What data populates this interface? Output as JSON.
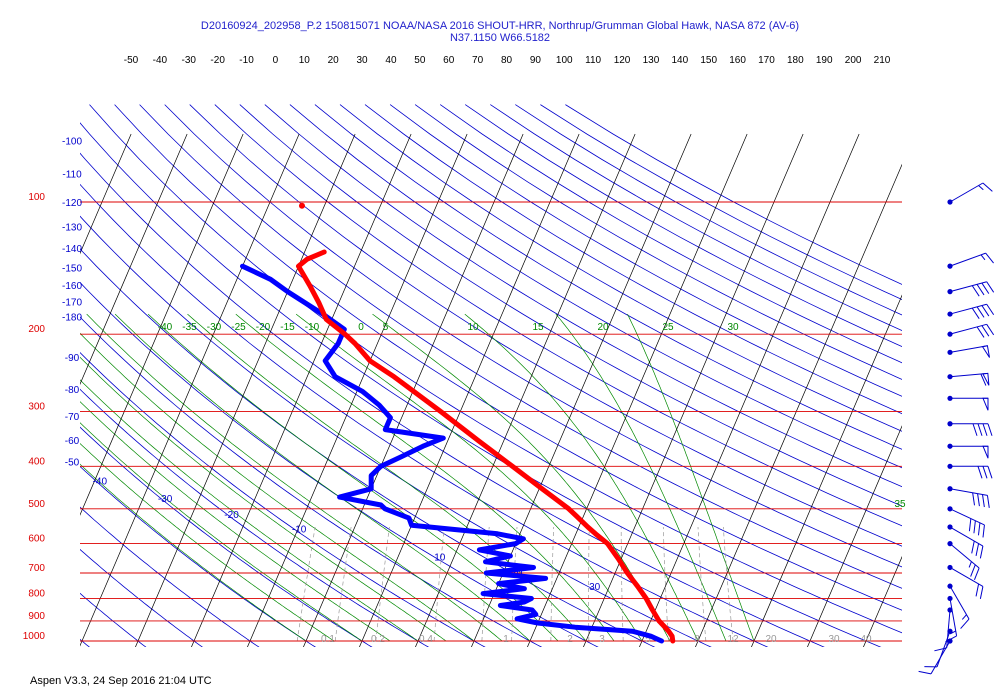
{
  "header": {
    "title": "D20160924_202958_P.2 150815071 NOAA/NASA 2016 SHOUT-HRR, Northrup/Grumman Global Hawk, NASA 872 (AV-6)",
    "location": "N37.1150 W66.5182"
  },
  "footer": {
    "text": "Aspen V3.3, 24 Sep 2016  21:04 UTC"
  },
  "chart_data": {
    "type": "skew-t",
    "colors": {
      "isobar": "#dd0000",
      "isotherm": "#000000",
      "dry_adiabat": "#0000cc",
      "moist_adiabat": "#008800",
      "mixing_ratio": "#999999",
      "temperature": "#ff0000",
      "dewpoint": "#0000ff",
      "barb": "#0000cc"
    },
    "pressure_levels": [
      100,
      200,
      300,
      400,
      500,
      600,
      700,
      800,
      900,
      1000
    ],
    "temperature_ticks": [
      -50,
      -40,
      -30,
      -20,
      -10,
      0,
      10,
      20,
      30,
      40,
      50,
      60,
      70,
      80,
      90,
      100,
      110,
      120,
      130,
      140,
      150,
      160,
      170,
      180,
      190,
      200,
      210
    ],
    "dry_adiabat_labels": [
      -180,
      -170,
      -160,
      -150,
      -140,
      -130,
      -120,
      -110,
      -100,
      -90,
      -80,
      -70,
      -60,
      -50,
      -40,
      -30,
      -20,
      -10,
      10,
      20,
      30
    ],
    "moist_adiabat_labels": [
      -40,
      -35,
      -30,
      -25,
      -20,
      -15,
      -10,
      -5,
      0,
      5,
      10,
      15,
      20,
      25,
      30,
      35
    ],
    "mixing_ratio_labels": [
      "0.1",
      "0.2",
      "0.4",
      "1",
      "2",
      "3",
      "5",
      "8",
      "12",
      "20",
      "30",
      "40"
    ],
    "temperature_profile": [
      [
        1000,
        25.5
      ],
      [
        975,
        25
      ],
      [
        950,
        24
      ],
      [
        925,
        22.8
      ],
      [
        900,
        21.5
      ],
      [
        850,
        19.5
      ],
      [
        800,
        17.5
      ],
      [
        750,
        15
      ],
      [
        700,
        12.2
      ],
      [
        650,
        9.5
      ],
      [
        600,
        6.4
      ],
      [
        570,
        3.5
      ],
      [
        550,
        1.6
      ],
      [
        520,
        -1.2
      ],
      [
        500,
        -3.2
      ],
      [
        450,
        -9.5
      ],
      [
        400,
        -16.5
      ],
      [
        350,
        -24.5
      ],
      [
        300,
        -33.5
      ],
      [
        250,
        -44.5
      ],
      [
        230,
        -50
      ],
      [
        210,
        -54
      ],
      [
        200,
        -56.5
      ],
      [
        185,
        -61
      ],
      [
        170,
        -63.5
      ],
      [
        155,
        -66.5
      ],
      [
        140,
        -70
      ],
      [
        135,
        -69
      ],
      [
        130,
        -66.5
      ]
    ],
    "dewpoint_profile": [
      [
        1000,
        23.5
      ],
      [
        975,
        21.2
      ],
      [
        950,
        17.5
      ],
      [
        930,
        7
      ],
      [
        910,
        0
      ],
      [
        890,
        -4
      ],
      [
        870,
        -1
      ],
      [
        850,
        -2
      ],
      [
        830,
        -8
      ],
      [
        815,
        -4
      ],
      [
        800,
        -3
      ],
      [
        780,
        -12
      ],
      [
        760,
        -5
      ],
      [
        740,
        -10
      ],
      [
        720,
        -2
      ],
      [
        700,
        -13
      ],
      [
        680,
        -5
      ],
      [
        660,
        -14
      ],
      [
        640,
        -10
      ],
      [
        620,
        -16
      ],
      [
        600,
        -10
      ],
      [
        585,
        -9
      ],
      [
        570,
        -14
      ],
      [
        545,
        -30
      ],
      [
        525,
        -31
      ],
      [
        500,
        -36
      ],
      [
        490,
        -37
      ],
      [
        470,
        -45
      ],
      [
        450,
        -40
      ],
      [
        420,
        -41
      ],
      [
        400,
        -40
      ],
      [
        380,
        -37
      ],
      [
        360,
        -34
      ],
      [
        345,
        -31
      ],
      [
        330,
        -42
      ],
      [
        310,
        -42
      ],
      [
        290,
        -45
      ],
      [
        270,
        -49
      ],
      [
        250,
        -55
      ],
      [
        230,
        -58
      ],
      [
        210,
        -57
      ],
      [
        195,
        -57
      ],
      [
        180,
        -62
      ],
      [
        160,
        -70
      ],
      [
        150,
        -74
      ],
      [
        140,
        -80
      ]
    ],
    "isolated_point": [
      102,
      -74
    ],
    "wind_barbs": [
      {
        "p": 100,
        "dir": 240,
        "speed": 15
      },
      {
        "p": 140,
        "dir": 250,
        "speed": 15
      },
      {
        "p": 160,
        "dir": 255,
        "speed": 40
      },
      {
        "p": 180,
        "dir": 255,
        "speed": 40
      },
      {
        "p": 200,
        "dir": 255,
        "speed": 30
      },
      {
        "p": 220,
        "dir": 260,
        "speed": 50
      },
      {
        "p": 250,
        "dir": 265,
        "speed": 60
      },
      {
        "p": 280,
        "dir": 270,
        "speed": 50
      },
      {
        "p": 320,
        "dir": 270,
        "speed": 40
      },
      {
        "p": 360,
        "dir": 270,
        "speed": 50
      },
      {
        "p": 400,
        "dir": 270,
        "speed": 30
      },
      {
        "p": 450,
        "dir": 280,
        "speed": 40
      },
      {
        "p": 500,
        "dir": 295,
        "speed": 40
      },
      {
        "p": 550,
        "dir": 300,
        "speed": 30
      },
      {
        "p": 600,
        "dir": 310,
        "speed": 25
      },
      {
        "p": 680,
        "dir": 300,
        "speed": 20
      },
      {
        "p": 750,
        "dir": 330,
        "speed": 15
      },
      {
        "p": 800,
        "dir": 350,
        "speed": 15
      },
      {
        "p": 850,
        "dir": 5,
        "speed": 10
      },
      {
        "p": 950,
        "dir": 20,
        "speed": 10
      },
      {
        "p": 1000,
        "dir": 30,
        "speed": 10
      }
    ]
  }
}
